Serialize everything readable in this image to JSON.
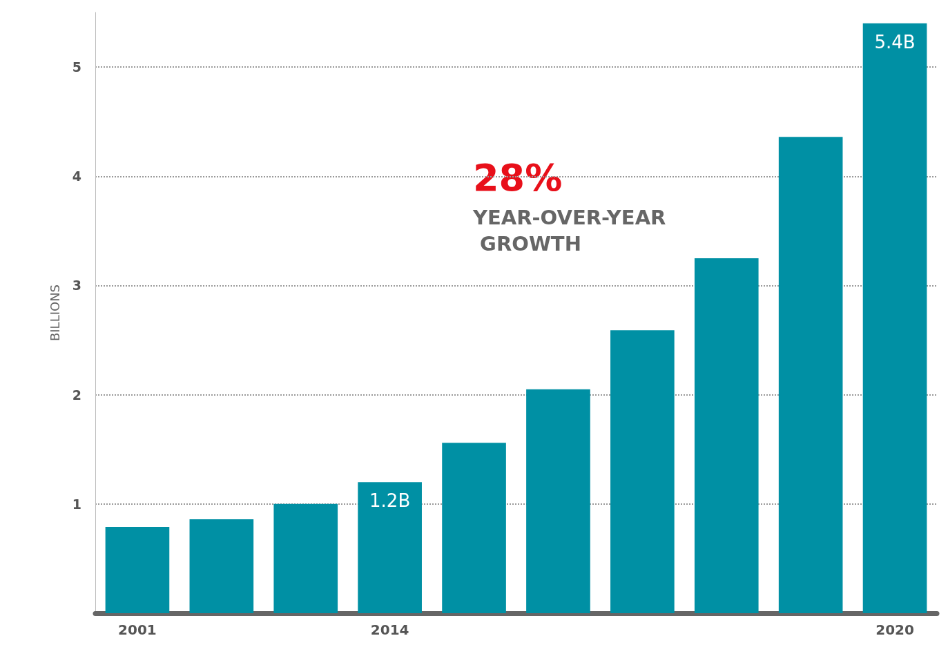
{
  "chart_data": {
    "type": "bar",
    "ylabel": "BILLIONS",
    "categories": [
      "2001",
      null,
      null,
      "2014",
      null,
      null,
      null,
      null,
      null,
      "2020"
    ],
    "values": [
      0.79,
      0.86,
      1.0,
      1.2,
      1.56,
      2.05,
      2.59,
      3.25,
      4.36,
      5.4
    ],
    "value_labels": [
      null,
      null,
      null,
      "1.2B",
      null,
      null,
      null,
      null,
      null,
      "5.4B"
    ],
    "color": "#0090a4",
    "ylim": [
      0,
      5.5
    ],
    "yticks": [
      1,
      2,
      3,
      4,
      5
    ],
    "grid": "y",
    "annotations": [
      "28%",
      "YEAR-OVER-YEAR GROWTH"
    ]
  }
}
